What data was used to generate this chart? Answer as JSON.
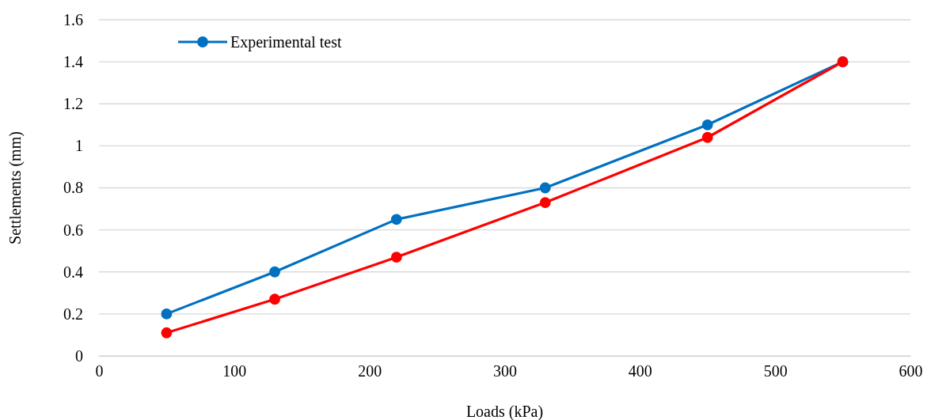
{
  "chart_data": {
    "type": "line",
    "xlabel": "Loads (kPa)",
    "ylabel": "Settlements (mm)",
    "x": [
      50,
      130,
      220,
      330,
      450,
      550
    ],
    "series": [
      {
        "name": "Experimental test",
        "color": "#0070c0",
        "values": [
          0.2,
          0.4,
          0.65,
          0.8,
          1.1,
          1.4
        ]
      },
      {
        "color": "#ff0000",
        "values": [
          0.11,
          0.27,
          0.47,
          0.73,
          1.04,
          1.4
        ]
      }
    ],
    "xlim": [
      0,
      600
    ],
    "xticks": [
      0,
      100,
      200,
      300,
      400,
      500,
      600
    ],
    "ylim": [
      0,
      1.6
    ],
    "yticks": [
      0,
      0.2,
      0.4,
      0.6,
      0.8,
      1,
      1.2,
      1.4,
      1.6
    ],
    "grid": "y",
    "legend": "top left",
    "marker": "circle",
    "line_style": "solid"
  }
}
